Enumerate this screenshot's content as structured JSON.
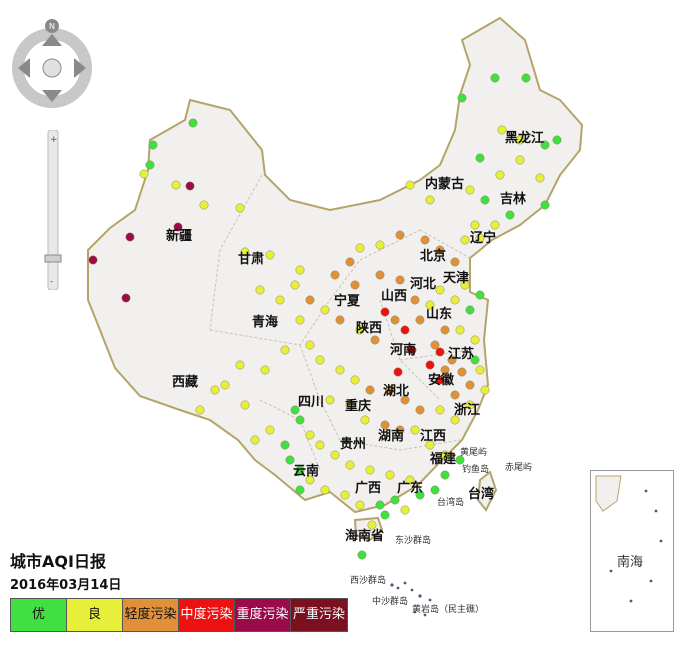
{
  "colors": {
    "good": "#40e040",
    "moderate": "#e6ef3a",
    "light": "#e0903a",
    "medium": "#ee1111",
    "heavy": "#9b0b4a",
    "severe": "#7a1020",
    "land": "#f2f0ee",
    "border": "#b5a46a"
  },
  "map_title": "城市AQI日报",
  "map_date": "2016年03月14日",
  "legend": [
    {
      "label": "优",
      "color": "#40e040"
    },
    {
      "label": "良",
      "color": "#e6ef3a"
    },
    {
      "label": "轻度污染",
      "color": "#e0903a"
    },
    {
      "label": "中度污染",
      "color": "#ee1111"
    },
    {
      "label": "重度污染",
      "color": "#9b0b4a"
    },
    {
      "label": "严重污染",
      "color": "#7a1020"
    }
  ],
  "provinces": [
    "黑龙江",
    "吉林",
    "辽宁",
    "内蒙古",
    "新疆",
    "甘肃",
    "青海",
    "西藏",
    "宁夏",
    "陕西",
    "山西",
    "河北",
    "北京",
    "天津",
    "山东",
    "河南",
    "江苏",
    "安徽",
    "湖北",
    "四川",
    "重庆",
    "贵州",
    "湖南",
    "江西",
    "浙江",
    "福建",
    "云南",
    "广西",
    "广东",
    "台湾",
    "海南省"
  ],
  "islands": [
    "东沙群岛",
    "西沙群岛",
    "中沙群岛",
    "黄岩岛（民主礁）",
    "黄尾屿",
    "钓鱼岛",
    "赤尾屿",
    "台湾岛"
  ],
  "inset_label": "南海",
  "icons": {
    "compass": "compass-icon",
    "north": "N"
  }
}
